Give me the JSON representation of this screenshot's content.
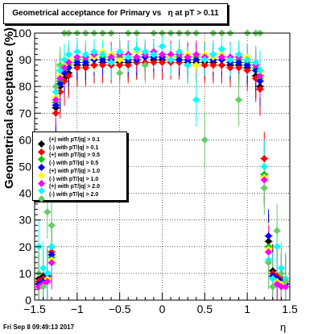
{
  "title": "Geometrical acceptance for Primary vs   η at pT > 0.11",
  "ylabel": "Geometrical acceptance (%)",
  "xlabel": "η",
  "datestamp": "Fri Sep  8 09:49:13 2017",
  "chart_data": {
    "type": "scatter",
    "xlim": [
      -1.5,
      1.5
    ],
    "ylim": [
      0,
      100
    ],
    "xticks": [
      -1.5,
      -1,
      -0.5,
      0,
      0.5,
      1,
      1.5
    ],
    "xtick_labels": [
      "−1.5",
      "−1",
      "−0.5",
      "0",
      "0.5",
      "1",
      "1.5"
    ],
    "yticks": [
      0,
      10,
      20,
      30,
      40,
      50,
      60,
      70,
      80,
      90,
      100
    ],
    "ytick_labels": [
      "0",
      "10",
      "20",
      "30",
      "40",
      "50",
      "60",
      "70",
      "80",
      "90",
      "100"
    ],
    "grid": true,
    "legend_position": "left-middle",
    "x": [
      -1.45,
      -1.4,
      -1.35,
      -1.3,
      -1.25,
      -1.2,
      -1.15,
      -1.1,
      -1.0,
      -0.9,
      -0.8,
      -0.7,
      -0.6,
      -0.5,
      -0.4,
      -0.3,
      -0.2,
      -0.1,
      0.0,
      0.1,
      0.2,
      0.3,
      0.4,
      0.5,
      0.6,
      0.7,
      0.8,
      0.9,
      1.0,
      1.1,
      1.15,
      1.2,
      1.25,
      1.3,
      1.35,
      1.4,
      1.45
    ],
    "series": [
      {
        "name": "(+) with pT/|q| > 0.1",
        "color": "#000000",
        "values": [
          8,
          9,
          10,
          20,
          72,
          80,
          83,
          85,
          88,
          88,
          88,
          89,
          89,
          89,
          89,
          89,
          89,
          90,
          90,
          90,
          90,
          89,
          89,
          89,
          89,
          88,
          88,
          88,
          87,
          84,
          80,
          47,
          22,
          11,
          9,
          8,
          7
        ]
      },
      {
        "name": "(-) with pT/|q| > 0.1",
        "color": "#ff0000",
        "values": [
          7,
          8,
          9,
          18,
          70,
          78,
          82,
          84,
          87,
          87,
          88,
          88,
          88,
          88,
          88,
          89,
          89,
          89,
          89,
          89,
          89,
          88,
          88,
          88,
          88,
          88,
          87,
          87,
          86,
          83,
          79,
          53,
          20,
          10,
          9,
          8,
          7
        ]
      },
      {
        "name": "(+) with pT/|q| > 0.5",
        "color": "#00cc00",
        "values": [
          6,
          7,
          8,
          16,
          74,
          82,
          86,
          88,
          90,
          90,
          90,
          91,
          91,
          91,
          91,
          91,
          91,
          91,
          91,
          91,
          91,
          91,
          91,
          91,
          91,
          90,
          90,
          90,
          89,
          87,
          83,
          47,
          20,
          9,
          8,
          7,
          6
        ]
      },
      {
        "name": "(-) with pT/|q| > 0.5",
        "color": "#0000ff",
        "values": [
          6,
          7,
          9,
          17,
          73,
          81,
          85,
          87,
          89,
          89,
          90,
          90,
          90,
          90,
          90,
          90,
          91,
          91,
          91,
          91,
          90,
          90,
          90,
          90,
          90,
          90,
          89,
          89,
          88,
          86,
          82,
          46,
          24,
          9,
          8,
          7,
          6
        ]
      },
      {
        "name": "(+) with pT/|q| > 1.0",
        "color": "#ffff00",
        "values": [
          5,
          6,
          8,
          15,
          76,
          84,
          88,
          90,
          91,
          92,
          91,
          93,
          92,
          90,
          91,
          93,
          92,
          92,
          92,
          91,
          93,
          92,
          88,
          92,
          91,
          92,
          90,
          92,
          91,
          89,
          85,
          46,
          19,
          8,
          7,
          6,
          5
        ]
      },
      {
        "name": "(-) with pT/|q| > 1.0",
        "color": "#ff00ff",
        "values": [
          5,
          6,
          7,
          14,
          75,
          83,
          87,
          89,
          91,
          91,
          92,
          92,
          91,
          92,
          92,
          91,
          92,
          93,
          92,
          92,
          92,
          91,
          92,
          91,
          92,
          91,
          91,
          91,
          90,
          88,
          84,
          45,
          18,
          8,
          6,
          5,
          5
        ]
      },
      {
        "name": "(+) with pT/|q| > 2.0",
        "color": "#00ffff",
        "values": [
          20,
          12,
          10,
          20,
          78,
          86,
          90,
          92,
          93,
          92,
          93,
          92,
          89,
          93,
          91,
          94,
          93,
          92,
          95,
          90,
          93,
          88,
          75,
          90,
          92,
          94,
          90,
          92,
          90,
          89,
          86,
          50,
          15,
          8,
          20,
          12,
          8
        ]
      },
      {
        "name": "(-) with pT/|q| > 2.0",
        "color": "#66cc66",
        "values": [
          10,
          5,
          33,
          28,
          80,
          88,
          100,
          100,
          100,
          100,
          100,
          100,
          100,
          85,
          100,
          100,
          88,
          100,
          100,
          100,
          100,
          100,
          100,
          60,
          100,
          100,
          100,
          75,
          100,
          100,
          100,
          42,
          14,
          5,
          26,
          10,
          7
        ]
      }
    ]
  }
}
